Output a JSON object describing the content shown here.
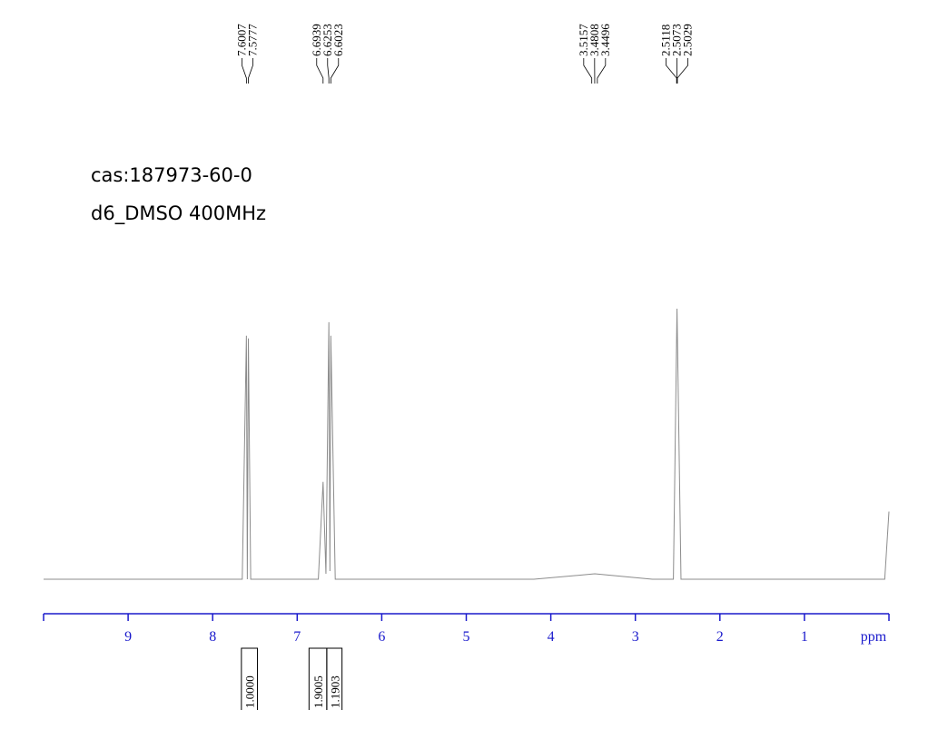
{
  "chart_data": {
    "type": "line",
    "title": "cas:187973-60-0",
    "subtitle": "d6_DMSO 400MHz",
    "x_label": "ppm",
    "xlim": [
      10,
      0
    ],
    "xticks": [
      9,
      8,
      7,
      6,
      5,
      4,
      3,
      2,
      1
    ],
    "ylim": [
      0,
      100
    ],
    "axis_color": "#1a1acc",
    "series": [
      {
        "color": "#8c8c8c",
        "x": [
          10,
          7.65,
          7.6007,
          7.59,
          7.5777,
          7.55,
          6.75,
          6.6939,
          6.66,
          6.6253,
          6.613,
          6.6023,
          6.55,
          4.2,
          3.48,
          2.8,
          2.55,
          2.5073,
          2.46,
          0.05,
          0.0
        ],
        "values": [
          0,
          0,
          90,
          0,
          89,
          0,
          0,
          36,
          2,
          95,
          3,
          90,
          0,
          0,
          2,
          0,
          0,
          100,
          0,
          0,
          25
        ]
      }
    ],
    "peak_labels": [
      [
        7.6007,
        7.5777
      ],
      [
        6.6939,
        6.6253,
        6.6023
      ],
      [
        3.5157,
        3.4808,
        3.4496
      ],
      [
        2.5118,
        2.5073,
        2.5029
      ]
    ],
    "integrals": [
      {
        "range": [
          7.66,
          7.47
        ],
        "value": {
          "value": 1,
          "label": "1.0000"
        }
      },
      {
        "range": [
          6.86,
          6.65
        ],
        "value": 1.9005
      },
      {
        "range": [
          6.65,
          6.47
        ],
        "value": 1.1903
      }
    ]
  }
}
